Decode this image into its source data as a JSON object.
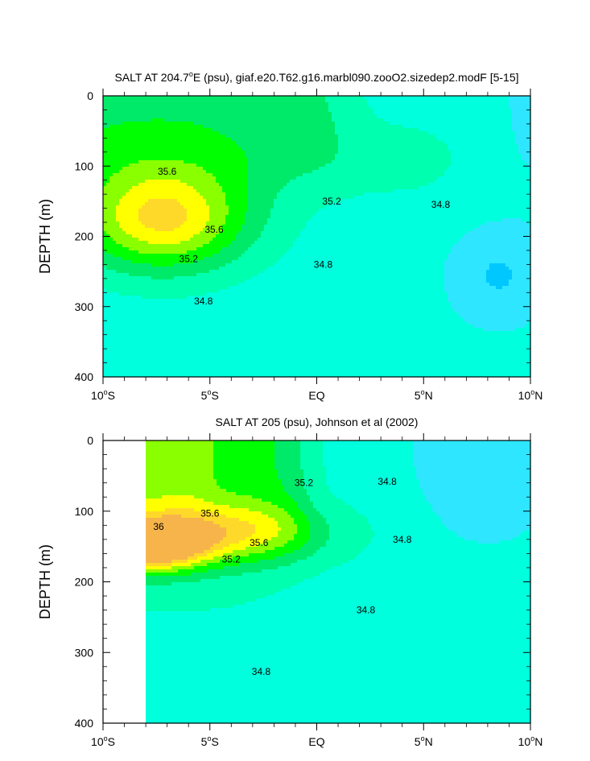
{
  "chart_data": [
    {
      "type": "contour",
      "title": "SALT AT 204.7°E (psu), giaf.e20.T62.g16.marbl090.zooO2.sizedep2.modF [5-15]",
      "title_parts": [
        "SALT AT 204.7",
        "o",
        "E (psu), giaf.e20.T62.g16.marbl090.zooO2.sizedep2.modF [5-15]"
      ],
      "ylabel": "DEPTH (m)",
      "xlim": [
        -10,
        10
      ],
      "ylim": [
        400,
        0
      ],
      "x_ticks": [
        {
          "v": -10,
          "num": "10",
          "hem": "S"
        },
        {
          "v": -5,
          "num": "5",
          "hem": "S"
        },
        {
          "v": 0,
          "num": "EQ",
          "hem": ""
        },
        {
          "v": 5,
          "num": "5",
          "hem": "N"
        },
        {
          "v": 10,
          "num": "10",
          "hem": "N"
        }
      ],
      "y_ticks": [
        "0",
        "100",
        "200",
        "300",
        "400"
      ],
      "contour_labels": [
        {
          "text": "35.6",
          "x": -7,
          "y": 108
        },
        {
          "text": "35.6",
          "x": -4.8,
          "y": 190
        },
        {
          "text": "35.2",
          "x": 0.7,
          "y": 150
        },
        {
          "text": "35.2",
          "x": -6,
          "y": 232
        },
        {
          "text": "34.8",
          "x": 5.8,
          "y": 155
        },
        {
          "text": "34.8",
          "x": 0.3,
          "y": 240
        },
        {
          "text": "34.8",
          "x": -5.3,
          "y": 292
        }
      ],
      "data_min_x": -10
    },
    {
      "type": "contour",
      "title": "SALT AT 205 (psu), Johnson et al (2002)",
      "title_parts": [
        "SALT AT 205 (psu), Johnson et al (2002)",
        "",
        ""
      ],
      "ylabel": "DEPTH (m)",
      "xlim": [
        -10,
        10
      ],
      "ylim": [
        400,
        0
      ],
      "x_ticks": [
        {
          "v": -10,
          "num": "10",
          "hem": "S"
        },
        {
          "v": -5,
          "num": "5",
          "hem": "S"
        },
        {
          "v": 0,
          "num": "EQ",
          "hem": ""
        },
        {
          "v": 5,
          "num": "5",
          "hem": "N"
        },
        {
          "v": 10,
          "num": "10",
          "hem": "N"
        }
      ],
      "y_ticks": [
        "0",
        "100",
        "200",
        "300",
        "400"
      ],
      "contour_labels": [
        {
          "text": "35.2",
          "x": -0.6,
          "y": 60
        },
        {
          "text": "34.8",
          "x": 3.3,
          "y": 58
        },
        {
          "text": "35.6",
          "x": -5,
          "y": 103
        },
        {
          "text": "36",
          "x": -7.4,
          "y": 122
        },
        {
          "text": "35.6",
          "x": -2.7,
          "y": 145
        },
        {
          "text": "34.8",
          "x": 4,
          "y": 140
        },
        {
          "text": "35.2",
          "x": -4,
          "y": 168
        },
        {
          "text": "34.8",
          "x": 2.3,
          "y": 240
        },
        {
          "text": "34.8",
          "x": -2.6,
          "y": 327
        }
      ],
      "data_min_x": -8
    }
  ],
  "levels": [
    34.4,
    34.6,
    34.8,
    35.0,
    35.2,
    35.4,
    35.6,
    35.8,
    36.0
  ],
  "colors": {
    "below_34.4": "#00c8ff",
    "34.4_34.6": "#2ee6ff",
    "34.6_34.8": "#00ffdd",
    "34.8_35.0": "#00ffae",
    "35.0_35.2": "#00ea6a",
    "35.2_35.4": "#00ff00",
    "35.4_35.6": "#8aff00",
    "35.6_35.8": "#ffff00",
    "35.8_36.0": "#ffd92a",
    "above_36.0": "#f7b44a",
    "axis": "#000000",
    "contour_line": "#1a1a1a"
  }
}
